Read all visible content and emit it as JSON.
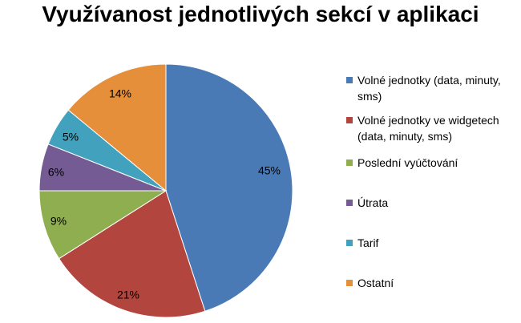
{
  "chart_data": {
    "type": "pie",
    "title": "Využívanost jednotlivých sekcí v aplikaci",
    "legend_position": "right",
    "slices": [
      {
        "label": "Volné jednotky (data, minuty, sms)",
        "value": 45,
        "display": "45%",
        "color": "#4a7ab5"
      },
      {
        "label": "Volné jednotky ve widgetech (data, minuty, sms)",
        "value": 21,
        "display": "21%",
        "color": "#b3453f"
      },
      {
        "label": "Poslední vyúčtování",
        "value": 9,
        "display": "9%",
        "color": "#8fae4f"
      },
      {
        "label": "Útrata",
        "value": 6,
        "display": "6%",
        "color": "#745b94"
      },
      {
        "label": "Tarif",
        "value": 5,
        "display": "5%",
        "color": "#42a2bd"
      },
      {
        "label": "Ostatní",
        "value": 14,
        "display": "14%",
        "color": "#e58f3b"
      }
    ]
  }
}
